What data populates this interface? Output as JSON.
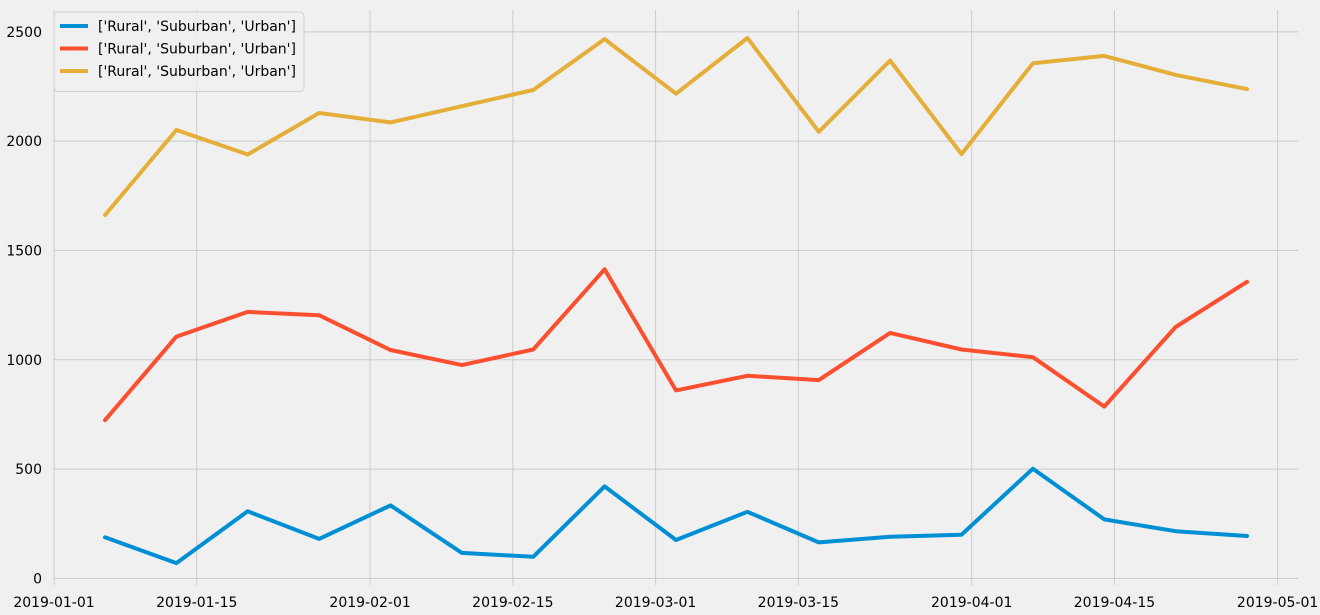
{
  "chart_data": {
    "type": "line",
    "title": "",
    "xlabel": "",
    "ylabel": "",
    "x": [
      "2019-01-06",
      "2019-01-13",
      "2019-01-20",
      "2019-01-27",
      "2019-02-03",
      "2019-02-10",
      "2019-02-17",
      "2019-02-24",
      "2019-03-03",
      "2019-03-10",
      "2019-03-17",
      "2019-03-24",
      "2019-03-31",
      "2019-04-07",
      "2019-04-14",
      "2019-04-21",
      "2019-04-28"
    ],
    "xlim": [
      "2019-01-01",
      "2019-05-03"
    ],
    "ylim": [
      -30,
      2600
    ],
    "x_ticks": [
      "2019-01-01",
      "2019-01-15",
      "2019-02-01",
      "2019-02-15",
      "2019-03-01",
      "2019-03-15",
      "2019-04-01",
      "2019-04-15",
      "2019-05-01"
    ],
    "y_ticks": [
      0,
      500,
      1000,
      1500,
      2000,
      2500
    ],
    "grid": true,
    "legend_position": "top-left",
    "series": [
      {
        "name": "['Rural', 'Suburban', 'Urban']",
        "color": "#008fd5",
        "values": [
          188,
          70,
          307,
          181,
          334,
          117,
          99,
          421,
          176,
          305,
          165,
          191,
          200,
          502,
          270,
          216,
          194
        ]
      },
      {
        "name": "['Rural', 'Suburban', 'Urban']",
        "color": "#fc4f30",
        "values": [
          724,
          1106,
          1219,
          1204,
          1045,
          976,
          1047,
          1414,
          860,
          927,
          907,
          1123,
          1047,
          1012,
          786,
          1150,
          1357
        ]
      },
      {
        "name": "['Rural', 'Suburban', 'Urban']",
        "color": "#e5ae38",
        "values": [
          1662,
          2051,
          1939,
          2129,
          2086,
          2160,
          2234,
          2467,
          2217,
          2472,
          2043,
          2369,
          1941,
          2356,
          2390,
          2303,
          2238
        ]
      }
    ]
  }
}
